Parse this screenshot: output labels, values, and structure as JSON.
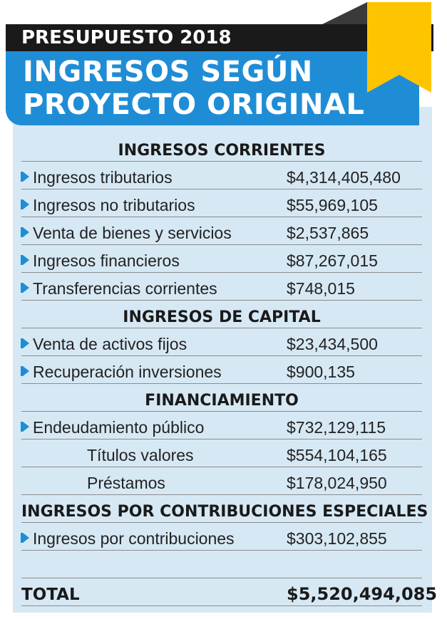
{
  "header": {
    "kicker": "PRESUPUESTO 2018",
    "title_line1": "INGRESOS SEGÚN",
    "title_line2": "PROYECTO ORIGINAL"
  },
  "colors": {
    "blue": "#1f8dd6",
    "yellow": "#ffc400",
    "panel": "#d6e8f4",
    "dark": "#1a1a1a"
  },
  "sections": {
    "corrientes": "INGRESOS CORRIENTES",
    "capital": "INGRESOS DE CAPITAL",
    "financiamiento": "FINANCIAMIENTO",
    "contribuciones": "INGRESOS  POR CONTRIBUCIONES ESPECIALES"
  },
  "rows": [
    {
      "label": "Ingresos tributarios",
      "value": "$4,314,405,480"
    },
    {
      "label": "Ingresos no tributarios",
      "value": "$55,969,105"
    },
    {
      "label": "Venta de bienes y servicios",
      "value": "$2,537,865"
    },
    {
      "label": "Ingresos financieros",
      "value": "$87,267,015"
    },
    {
      "label": "Transferencias corrientes",
      "value": "$748,015"
    },
    {
      "label": "Venta de activos fijos",
      "value": "$23,434,500"
    },
    {
      "label": "Recuperación inversiones",
      "value": "$900,135"
    },
    {
      "label": "Endeudamiento público",
      "value": "$732,129,115"
    },
    {
      "label": "Títulos valores",
      "value": "$554,104,165"
    },
    {
      "label": "Préstamos",
      "value": "$178,024,950"
    },
    {
      "label": "Ingresos por contribuciones",
      "value": "$303,102,855"
    }
  ],
  "total": {
    "label": "TOTAL",
    "value": "$5,520,494,085"
  }
}
